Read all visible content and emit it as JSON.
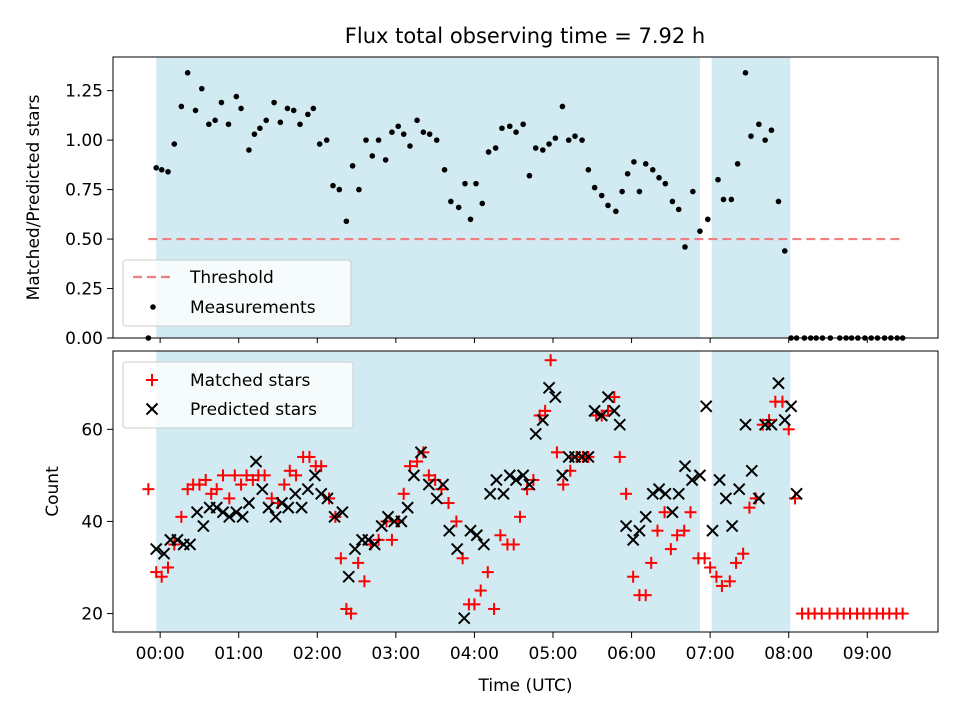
{
  "chart_data": [
    {
      "type": "scatter",
      "title": "Flux total observing time = 7.92 h",
      "xlabel": "",
      "ylabel": "Matched/Predicted stars",
      "ylim": [
        0,
        1.42
      ],
      "yticks": [
        0.0,
        0.25,
        0.5,
        0.75,
        1.0,
        1.25
      ],
      "ytick_labels": [
        "0.00",
        "0.25",
        "0.50",
        "0.75",
        "1.00",
        "1.25"
      ],
      "xlim_hours": [
        -0.6,
        9.9
      ],
      "xticks_hours": [
        0,
        1,
        2,
        3,
        4,
        5,
        6,
        7,
        8,
        9
      ],
      "shaded_intervals_hours": [
        [
          -0.05,
          6.87
        ],
        [
          7.02,
          8.02
        ]
      ],
      "shade_color": "#add8e6",
      "threshold": {
        "name": "Threshold",
        "value": 0.5,
        "x_range_hours": [
          -0.15,
          9.47
        ],
        "color": "#f08080"
      },
      "legend": {
        "placement": "lower-left",
        "entries": [
          "Threshold",
          "Measurements"
        ]
      },
      "series": [
        {
          "name": "Measurements",
          "marker": "dot",
          "color": "#000000",
          "x": [
            -0.15,
            -0.05,
            0.02,
            0.1,
            0.18,
            0.27,
            0.35,
            0.45,
            0.53,
            0.62,
            0.7,
            0.78,
            0.87,
            0.97,
            1.03,
            1.13,
            1.2,
            1.27,
            1.35,
            1.45,
            1.53,
            1.62,
            1.7,
            1.78,
            1.88,
            1.95,
            2.03,
            2.12,
            2.2,
            2.28,
            2.37,
            2.45,
            2.53,
            2.62,
            2.7,
            2.78,
            2.87,
            2.95,
            3.03,
            3.1,
            3.18,
            3.27,
            3.35,
            3.43,
            3.52,
            3.62,
            3.7,
            3.8,
            3.88,
            3.95,
            4.02,
            4.1,
            4.18,
            4.27,
            4.35,
            4.45,
            4.53,
            4.62,
            4.7,
            4.78,
            4.87,
            4.95,
            5.03,
            5.12,
            5.2,
            5.28,
            5.37,
            5.45,
            5.53,
            5.62,
            5.7,
            5.8,
            5.88,
            5.95,
            6.03,
            6.1,
            6.18,
            6.27,
            6.35,
            6.43,
            6.52,
            6.6,
            6.68,
            6.78,
            6.87,
            6.97,
            7.1,
            7.17,
            7.27,
            7.35,
            7.45,
            7.52,
            7.62,
            7.7,
            7.78,
            7.87,
            7.95,
            8.03,
            8.1,
            8.2,
            8.28,
            8.35,
            8.43,
            8.53,
            8.65,
            8.73,
            8.8,
            8.88,
            8.97,
            9.05,
            9.13,
            9.22,
            9.3,
            9.38,
            9.45
          ],
          "y": [
            0.0,
            0.86,
            0.85,
            0.84,
            0.98,
            1.17,
            1.34,
            1.15,
            1.26,
            1.08,
            1.1,
            1.19,
            1.08,
            1.22,
            1.16,
            0.95,
            1.03,
            1.06,
            1.1,
            1.19,
            1.09,
            1.16,
            1.15,
            1.08,
            1.13,
            1.16,
            0.98,
            1.0,
            0.77,
            0.75,
            0.59,
            0.87,
            0.75,
            1.0,
            0.92,
            1.0,
            0.9,
            1.04,
            1.07,
            1.03,
            0.97,
            1.1,
            1.04,
            1.03,
            1.0,
            0.85,
            0.69,
            0.66,
            0.78,
            0.6,
            0.78,
            0.68,
            0.94,
            0.96,
            1.06,
            1.07,
            1.04,
            1.08,
            0.82,
            0.96,
            0.95,
            0.98,
            1.01,
            1.17,
            1.0,
            1.02,
            1.0,
            0.85,
            0.76,
            0.72,
            0.67,
            0.64,
            0.74,
            0.83,
            0.89,
            0.74,
            0.88,
            0.85,
            0.81,
            0.78,
            0.69,
            0.65,
            0.46,
            0.74,
            0.54,
            0.6,
            0.8,
            0.7,
            0.7,
            0.88,
            1.34,
            1.02,
            1.08,
            1.0,
            1.05,
            0.69,
            0.44,
            0.0,
            0.0,
            0.0,
            0.0,
            0.0,
            0.0,
            0.0,
            0.0,
            0.0,
            0.0,
            0.0,
            0.0,
            0.0,
            0.0,
            0.0,
            0.0,
            0.0,
            0.0
          ]
        }
      ]
    },
    {
      "type": "scatter",
      "title": "",
      "xlabel": "Time (UTC)",
      "ylabel": "Count",
      "ylim": [
        16,
        77
      ],
      "yticks": [
        20,
        40,
        60
      ],
      "ytick_labels": [
        "20",
        "40",
        "60"
      ],
      "xlim_hours": [
        -0.6,
        9.9
      ],
      "xticks_hours": [
        0,
        1,
        2,
        3,
        4,
        5,
        6,
        7,
        8,
        9
      ],
      "xtick_labels": [
        "00:00",
        "01:00",
        "02:00",
        "03:00",
        "04:00",
        "05:00",
        "06:00",
        "07:00",
        "08:00",
        "09:00"
      ],
      "shaded_intervals_hours": [
        [
          -0.05,
          6.87
        ],
        [
          7.02,
          8.02
        ]
      ],
      "shade_color": "#add8e6",
      "legend": {
        "placement": "top-left",
        "entries": [
          "Matched stars",
          "Predicted stars"
        ]
      },
      "series": [
        {
          "name": "Matched stars",
          "marker": "plus",
          "color": "#ff0000",
          "x": [
            -0.15,
            -0.05,
            0.02,
            0.1,
            0.18,
            0.27,
            0.35,
            0.42,
            0.5,
            0.58,
            0.65,
            0.72,
            0.8,
            0.88,
            0.95,
            1.03,
            1.1,
            1.18,
            1.25,
            1.33,
            1.42,
            1.5,
            1.58,
            1.65,
            1.73,
            1.82,
            1.9,
            1.98,
            2.05,
            2.15,
            2.23,
            2.3,
            2.37,
            2.43,
            2.52,
            2.6,
            2.68,
            2.78,
            2.88,
            2.95,
            3.03,
            3.1,
            3.18,
            3.27,
            3.35,
            3.42,
            3.5,
            3.58,
            3.67,
            3.77,
            3.85,
            3.93,
            4.0,
            4.08,
            4.17,
            4.25,
            4.33,
            4.42,
            4.5,
            4.58,
            4.67,
            4.75,
            4.83,
            4.9,
            4.97,
            5.05,
            5.13,
            5.22,
            5.3,
            5.38,
            5.45,
            5.55,
            5.62,
            5.7,
            5.78,
            5.85,
            5.93,
            6.02,
            6.1,
            6.18,
            6.25,
            6.33,
            6.42,
            6.5,
            6.58,
            6.67,
            6.75,
            6.85,
            6.93,
            7.0,
            7.08,
            7.15,
            7.25,
            7.33,
            7.42,
            7.5,
            7.58,
            7.67,
            7.75,
            7.83,
            7.92,
            8.0,
            8.08,
            8.17,
            8.25,
            8.33,
            8.42,
            8.52,
            8.62,
            8.7,
            8.78,
            8.87,
            8.95,
            9.03,
            9.12,
            9.2,
            9.28,
            9.37,
            9.45
          ],
          "y": [
            47,
            29,
            28,
            30,
            35,
            41,
            47,
            48,
            48,
            49,
            46,
            47,
            50,
            45,
            50,
            48,
            50,
            49,
            50,
            50,
            45,
            44,
            48,
            51,
            50,
            54,
            54,
            52,
            52,
            45,
            41,
            32,
            21,
            20,
            31,
            27,
            35,
            36,
            40,
            36,
            40,
            46,
            52,
            53,
            55,
            50,
            49,
            47,
            44,
            40,
            32,
            22,
            22,
            25,
            29,
            21,
            37,
            35,
            35,
            41,
            47,
            49,
            63,
            64,
            75,
            55,
            48,
            51,
            54,
            54,
            54,
            63,
            63,
            64,
            67,
            54,
            46,
            28,
            24,
            24,
            31,
            38,
            42,
            34,
            37,
            38,
            42,
            32,
            32,
            30,
            28,
            26,
            27,
            31,
            33,
            43,
            45,
            61,
            62,
            66,
            66,
            60,
            45,
            20,
            20,
            20,
            20,
            20,
            20,
            20,
            20,
            20,
            20,
            20,
            20,
            20,
            20,
            20,
            20
          ],
          "y_axis_clip_note": ""
        },
        {
          "name": "Predicted stars",
          "marker": "x",
          "color": "#000000",
          "x": [
            -0.05,
            0.05,
            0.13,
            0.22,
            0.3,
            0.38,
            0.47,
            0.55,
            0.63,
            0.72,
            0.8,
            0.88,
            0.97,
            1.05,
            1.13,
            1.22,
            1.3,
            1.38,
            1.47,
            1.55,
            1.63,
            1.72,
            1.8,
            1.88,
            1.97,
            2.05,
            2.13,
            2.22,
            2.32,
            2.4,
            2.48,
            2.57,
            2.65,
            2.73,
            2.82,
            2.9,
            2.98,
            3.07,
            3.15,
            3.23,
            3.32,
            3.42,
            3.52,
            3.6,
            3.68,
            3.78,
            3.87,
            3.95,
            4.03,
            4.12,
            4.2,
            4.28,
            4.37,
            4.45,
            4.53,
            4.62,
            4.7,
            4.78,
            4.87,
            4.95,
            5.03,
            5.12,
            5.2,
            5.28,
            5.37,
            5.45,
            5.53,
            5.62,
            5.7,
            5.78,
            5.85,
            5.93,
            6.02,
            6.1,
            6.18,
            6.27,
            6.35,
            6.43,
            6.52,
            6.6,
            6.68,
            6.77,
            6.87,
            6.95,
            7.03,
            7.12,
            7.2,
            7.28,
            7.37,
            7.45,
            7.53,
            7.62,
            7.7,
            7.78,
            7.87,
            7.95,
            8.03,
            8.1
          ],
          "y": [
            34,
            33,
            36,
            36,
            35,
            35,
            42,
            39,
            43,
            43,
            42,
            41,
            42,
            41,
            44,
            53,
            47,
            43,
            41,
            44,
            43,
            46,
            43,
            47,
            50,
            46,
            45,
            41,
            42,
            28,
            34,
            36,
            36,
            35,
            39,
            41,
            40,
            40,
            43,
            50,
            55,
            48,
            45,
            48,
            38,
            34,
            19,
            38,
            37,
            35,
            46,
            49,
            46,
            50,
            49,
            50,
            48,
            59,
            62,
            69,
            67,
            50,
            54,
            54,
            54,
            54,
            64,
            63,
            67,
            64,
            61,
            39,
            36,
            38,
            41,
            46,
            47,
            46,
            42,
            46,
            52,
            49,
            50,
            65,
            38,
            49,
            45,
            39,
            47,
            61,
            51,
            45,
            61,
            61,
            70,
            62,
            65,
            46
          ]
        }
      ]
    }
  ]
}
